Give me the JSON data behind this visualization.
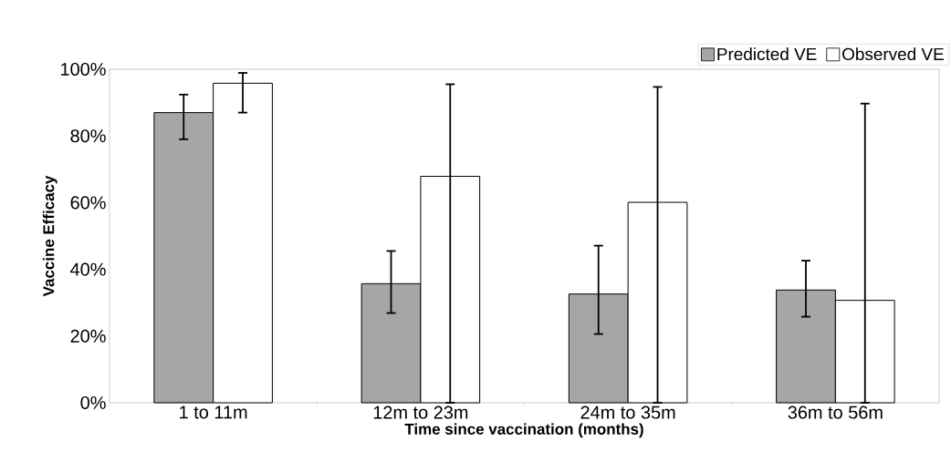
{
  "chart_data": {
    "type": "bar",
    "xlabel": "Time since vaccination (months)",
    "ylabel": "Vaccine Efficacy",
    "categories": [
      "1 to 11m",
      "12m to 23m",
      "24m to 35m",
      "36m to 56m"
    ],
    "series": [
      {
        "name": "Predicted VE",
        "color": "#a6a6a6",
        "values": [
          87,
          35.7,
          32.6,
          33.8
        ],
        "errors": [
          [
            79,
            92.4
          ],
          [
            26.9,
            45.5
          ],
          [
            20.6,
            47.1
          ],
          [
            25.8,
            42.6
          ]
        ]
      },
      {
        "name": "Observed VE",
        "color": "#ffffff",
        "values": [
          95.8,
          67.9,
          60.1,
          30.7
        ],
        "errors": [
          [
            87,
            98.9
          ],
          [
            0,
            95.5
          ],
          [
            0,
            94.7
          ],
          [
            0,
            89.7
          ]
        ]
      }
    ],
    "ylim": [
      0,
      100
    ],
    "yticks": [
      {
        "value": 0,
        "label": "0%"
      },
      {
        "value": 20,
        "label": "20%"
      },
      {
        "value": 40,
        "label": "40%"
      },
      {
        "value": 60,
        "label": "60%"
      },
      {
        "value": 80,
        "label": "80%"
      },
      {
        "value": 100,
        "label": "100%"
      }
    ],
    "legend": "top right",
    "grid": false
  }
}
